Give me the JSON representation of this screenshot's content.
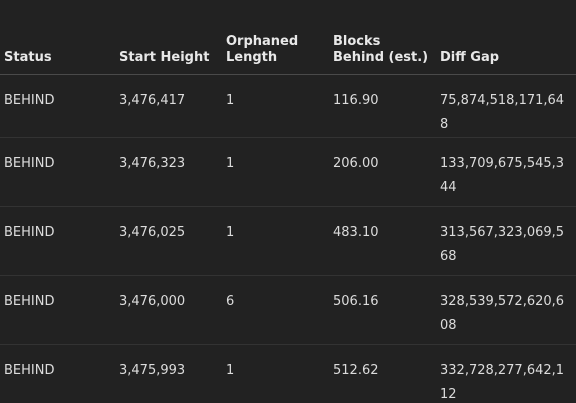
{
  "table": {
    "columns": [
      "Status",
      "Start Height",
      "Orphaned Length",
      "Blocks Behind (est.)",
      "Diff Gap"
    ],
    "rows": [
      [
        "BEHIND",
        "3,476,417",
        "1",
        "116.90",
        "75,874,518,171,648"
      ],
      [
        "BEHIND",
        "3,476,323",
        "1",
        "206.00",
        "133,709,675,545,344"
      ],
      [
        "BEHIND",
        "3,476,025",
        "1",
        "483.10",
        "313,567,323,069,568"
      ],
      [
        "BEHIND",
        "3,476,000",
        "6",
        "506.16",
        "328,539,572,620,608"
      ],
      [
        "BEHIND",
        "3,475,993",
        "1",
        "512.62",
        "332,728,277,642,112"
      ]
    ]
  }
}
